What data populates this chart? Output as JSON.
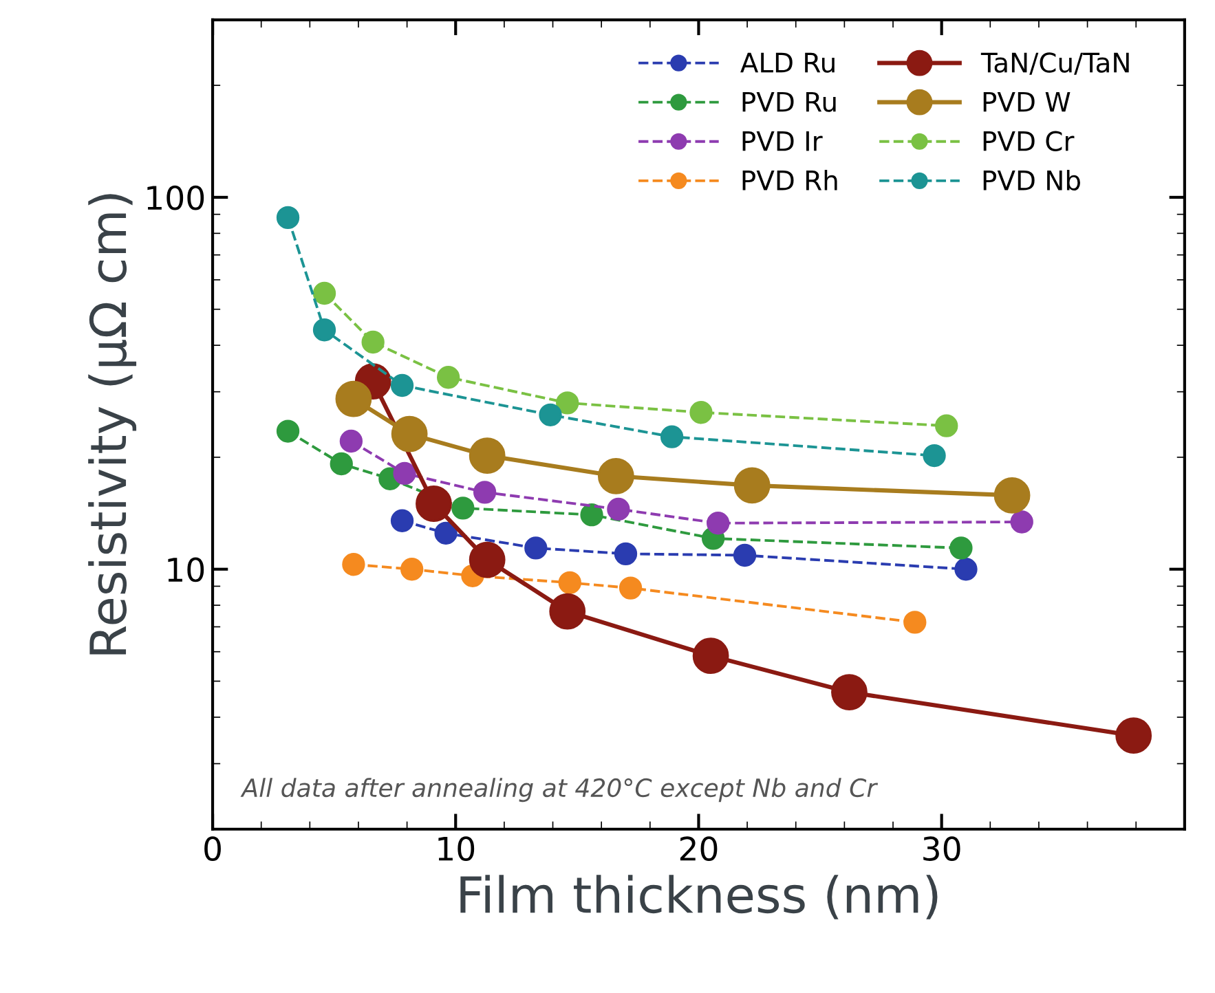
{
  "chart_data": {
    "type": "line",
    "xlabel": "Film thickness (nm)",
    "ylabel": "Resistivity (μΩ cm)",
    "log": "y",
    "xlim": [
      0,
      40
    ],
    "ylim": [
      2,
      300
    ],
    "xticks": [
      0,
      10,
      20,
      30
    ],
    "yticks": [
      10,
      100
    ],
    "grid": false,
    "legend": "top right",
    "marker": "circle",
    "annotations": [
      "All data after annealing at 420°C except Nb and Cr"
    ],
    "series": [
      {
        "name": "ALD Ru",
        "color": "#2a3cb0",
        "line_style": "dashed",
        "x": [
          7.8,
          9.6,
          13.3,
          17,
          21.9,
          31
        ],
        "values": [
          13.5,
          12.5,
          11.4,
          11,
          10.9,
          10
        ]
      },
      {
        "name": "PVD Ru",
        "color": "#2e9a3e",
        "line_style": "dashed",
        "x": [
          3.1,
          5.3,
          7.3,
          10.3,
          15.6,
          20.6,
          30.8
        ],
        "values": [
          23.5,
          19.2,
          17.5,
          14.6,
          14,
          12.1,
          11.4
        ]
      },
      {
        "name": "PVD Ir",
        "color": "#8e3bb0",
        "line_style": "dashed",
        "x": [
          5.7,
          7.9,
          11.2,
          16.7,
          20.8,
          33.3
        ],
        "values": [
          22.1,
          18.1,
          16.1,
          14.5,
          13.3,
          13.4
        ]
      },
      {
        "name": "PVD Rh",
        "color": "#f58a1f",
        "line_style": "dashed",
        "x": [
          5.8,
          8.2,
          10.7,
          14.7,
          17.2,
          28.9
        ],
        "values": [
          10.3,
          10,
          9.6,
          9.2,
          8.9,
          7.2
        ]
      },
      {
        "name": "TaN/Cu/TaN",
        "color": "#8b1a12",
        "line_style": "solid",
        "x": [
          6.6,
          9.1,
          11.3,
          14.6,
          20.5,
          26.2,
          37.9
        ],
        "values": [
          32,
          15,
          10.6,
          7.7,
          5.85,
          4.67,
          3.57
        ]
      },
      {
        "name": "PVD W",
        "color": "#a87c1e",
        "line_style": "solid",
        "x": [
          5.8,
          8.1,
          11.3,
          16.6,
          22.2,
          32.9
        ],
        "values": [
          28.7,
          23.1,
          20.2,
          17.8,
          16.8,
          15.8
        ]
      },
      {
        "name": "PVD Cr",
        "color": "#7ac143",
        "line_style": "dashed",
        "x": [
          4.6,
          6.6,
          9.7,
          14.6,
          20.1,
          30.2
        ],
        "values": [
          55.2,
          40.8,
          32.8,
          28,
          26.4,
          24.3
        ]
      },
      {
        "name": "PVD Nb",
        "color": "#1c9494",
        "line_style": "dashed",
        "x": [
          3.1,
          4.6,
          7.8,
          13.9,
          18.9,
          29.7
        ],
        "values": [
          88.2,
          44,
          31.2,
          26,
          22.7,
          20.2
        ]
      }
    ]
  }
}
